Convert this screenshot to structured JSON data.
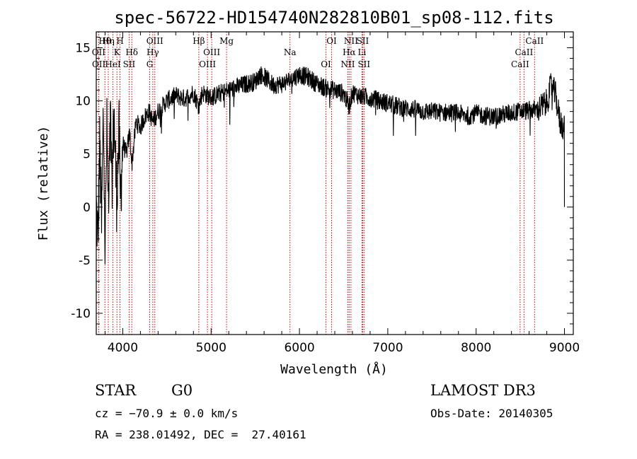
{
  "chart_data": {
    "type": "line",
    "title": "spec-56722-HD154740N282810B01_sp08-112.fits",
    "xlabel": "Wavelength (Å)",
    "ylabel": "Flux (relative)",
    "xlim": [
      3700,
      9100
    ],
    "ylim": [
      -12,
      16.5
    ],
    "x_ticks": [
      4000,
      5000,
      6000,
      7000,
      8000,
      9000
    ],
    "y_ticks": [
      -10,
      -5,
      0,
      5,
      10,
      15
    ],
    "grid": false,
    "series": [
      {
        "name": "spectrum",
        "anchors": [
          [
            3700,
            0
          ],
          [
            3720,
            -3
          ],
          [
            3740,
            6
          ],
          [
            3760,
            -2
          ],
          [
            3780,
            9
          ],
          [
            3800,
            -4
          ],
          [
            3820,
            7
          ],
          [
            3840,
            -1
          ],
          [
            3860,
            8
          ],
          [
            3880,
            2
          ],
          [
            3900,
            9
          ],
          [
            3930,
            1
          ],
          [
            3960,
            7
          ],
          [
            3970,
            0
          ],
          [
            4000,
            6
          ],
          [
            4040,
            5
          ],
          [
            4080,
            7
          ],
          [
            4102,
            4
          ],
          [
            4150,
            8
          ],
          [
            4200,
            7.5
          ],
          [
            4250,
            8.5
          ],
          [
            4300,
            9
          ],
          [
            4340,
            8
          ],
          [
            4400,
            9
          ],
          [
            4500,
            10
          ],
          [
            4600,
            10.5
          ],
          [
            4700,
            10.2
          ],
          [
            4800,
            10.8
          ],
          [
            4861,
            9.5
          ],
          [
            4900,
            10.8
          ],
          [
            5000,
            10.3
          ],
          [
            5100,
            10.7
          ],
          [
            5200,
            11
          ],
          [
            5300,
            11.3
          ],
          [
            5400,
            11.6
          ],
          [
            5500,
            11.8
          ],
          [
            5550,
            12.5
          ],
          [
            5600,
            12.3
          ],
          [
            5700,
            11.5
          ],
          [
            5800,
            11.6
          ],
          [
            5900,
            12
          ],
          [
            6000,
            12.5
          ],
          [
            6100,
            12.2
          ],
          [
            6200,
            11.6
          ],
          [
            6300,
            11.2
          ],
          [
            6400,
            11
          ],
          [
            6500,
            10.7
          ],
          [
            6563,
            9.5
          ],
          [
            6600,
            10.8
          ],
          [
            6700,
            10.4
          ],
          [
            6800,
            10.3
          ],
          [
            6900,
            10
          ],
          [
            7000,
            9.8
          ],
          [
            7100,
            9.5
          ],
          [
            7200,
            9.3
          ],
          [
            7300,
            9.2
          ],
          [
            7400,
            9
          ],
          [
            7500,
            9
          ],
          [
            7600,
            8.9
          ],
          [
            7700,
            8.9
          ],
          [
            7800,
            8.8
          ],
          [
            7900,
            8.6
          ],
          [
            8000,
            8.8
          ],
          [
            8100,
            8.6
          ],
          [
            8200,
            8.5
          ],
          [
            8300,
            8.7
          ],
          [
            8400,
            8.9
          ],
          [
            8500,
            9
          ],
          [
            8600,
            9.1
          ],
          [
            8700,
            9.2
          ],
          [
            8800,
            9.8
          ],
          [
            8850,
            11.5
          ],
          [
            8900,
            10.5
          ],
          [
            8950,
            8
          ],
          [
            9000,
            7.5
          ]
        ],
        "noise": 0.9
      }
    ],
    "spectral_lines": [
      {
        "name": "Hθ",
        "wavelength": 3798
      },
      {
        "name": "OII",
        "wavelength": 3727
      },
      {
        "name": "OII",
        "wavelength": 3729
      },
      {
        "name": "Hη",
        "wavelength": 3836
      },
      {
        "name": "K",
        "wavelength": 3934
      },
      {
        "name": "HeI",
        "wavelength": 3889
      },
      {
        "name": "H",
        "wavelength": 3969
      },
      {
        "name": "Hδ",
        "wavelength": 4102
      },
      {
        "name": "SII",
        "wavelength": 4072
      },
      {
        "name": "OIII",
        "wavelength": 4363
      },
      {
        "name": "Hγ",
        "wavelength": 4340
      },
      {
        "name": "G",
        "wavelength": 4305
      },
      {
        "name": "Hβ",
        "wavelength": 4861
      },
      {
        "name": "OIII",
        "wavelength": 5007
      },
      {
        "name": "OIII",
        "wavelength": 4959
      },
      {
        "name": "Mg",
        "wavelength": 5175
      },
      {
        "name": "Na",
        "wavelength": 5893
      },
      {
        "name": "OI",
        "wavelength": 6300
      },
      {
        "name": "OI",
        "wavelength": 6364
      },
      {
        "name": "Hα",
        "wavelength": 6563
      },
      {
        "name": "SII",
        "wavelength": 6731
      },
      {
        "name": "NII",
        "wavelength": 6583
      },
      {
        "name": "Li",
        "wavelength": 6708
      },
      {
        "name": "NII",
        "wavelength": 6548
      },
      {
        "name": "SII",
        "wavelength": 6716
      },
      {
        "name": "CaII",
        "wavelength": 8542
      },
      {
        "name": "CaII",
        "wavelength": 8498
      },
      {
        "name": "CaII",
        "wavelength": 8662
      }
    ],
    "line_color": "#000000",
    "marker_color": "#cc0000"
  },
  "info": {
    "object_class": "STAR",
    "subclass": "G0",
    "survey": "LAMOST DR3",
    "cz": "cz = −70.9 ± 0.0 km/s",
    "obs_date": "Obs-Date: 20140305",
    "coords": "RA = 238.01492, DEC =  27.40161"
  }
}
